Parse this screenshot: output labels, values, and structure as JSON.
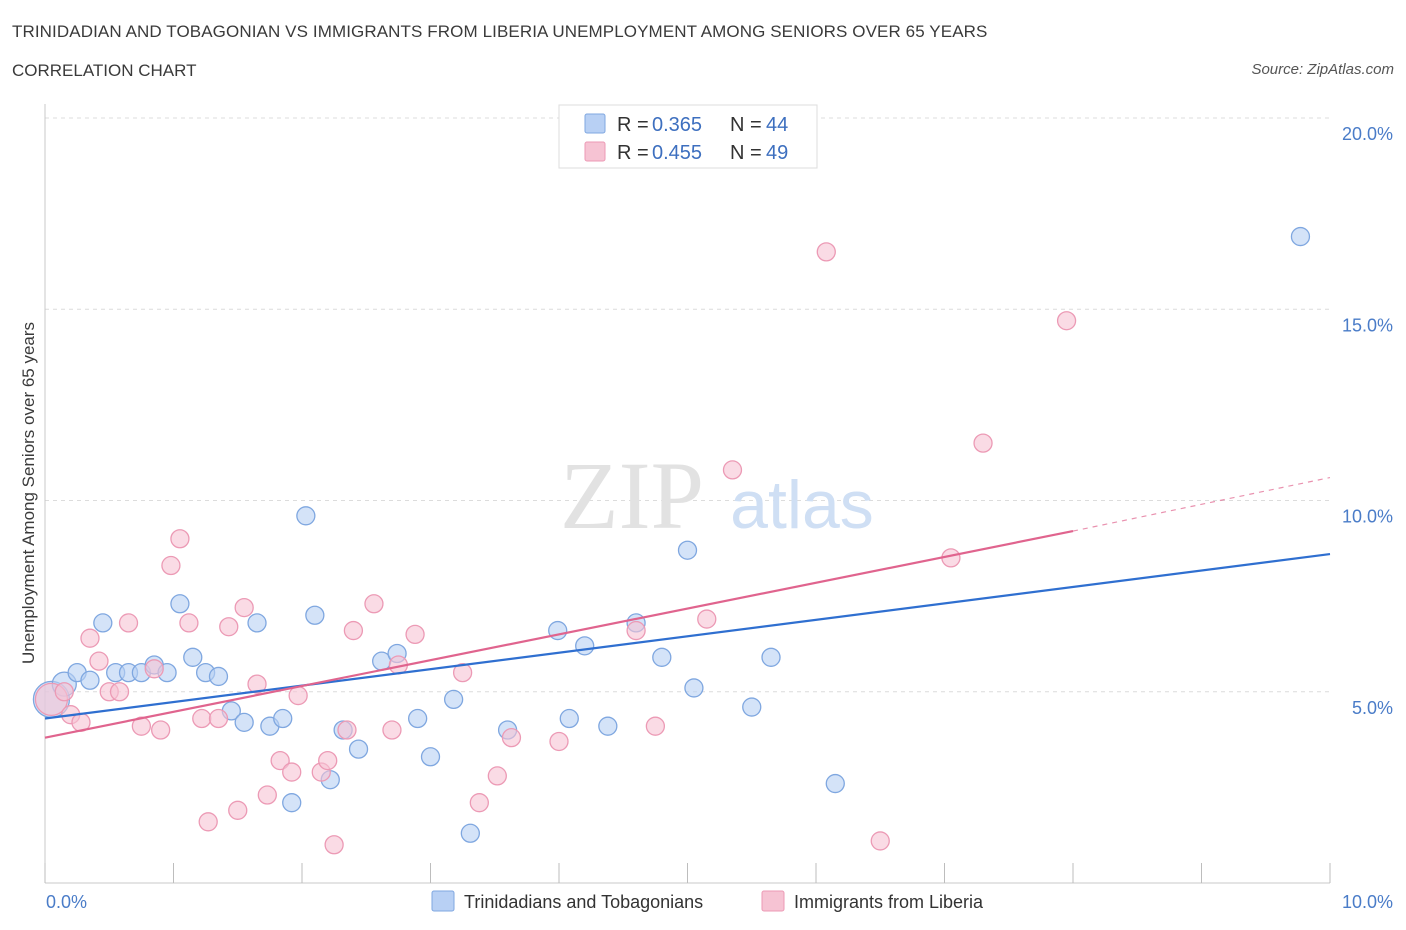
{
  "title": "TRINIDADIAN AND TOBAGONIAN VS IMMIGRANTS FROM LIBERIA UNEMPLOYMENT AMONG SENIORS OVER 65 YEARS",
  "subtitle": "CORRELATION CHART",
  "source": "Source: ZipAtlas.com",
  "watermark": {
    "zip": "ZIP",
    "atlas": "atlas"
  },
  "colors": {
    "blue_fill": "#b8d0f4",
    "blue_stroke": "#7fa7e0",
    "blue_line": "#2f6fd0",
    "pink_fill": "#f6c3d3",
    "pink_stroke": "#ec9ab5",
    "pink_line": "#e0648e",
    "grid": "#dcdcdc",
    "axis_text": "#4a7cc8"
  },
  "legend": {
    "r_label": "R =",
    "n_label": "N =",
    "series": [
      {
        "name": "Trinidadians and Tobagonians",
        "r": "0.365",
        "n": "44",
        "color": "blue"
      },
      {
        "name": "Immigrants from Liberia",
        "r": "0.455",
        "n": "49",
        "color": "pink"
      }
    ]
  },
  "chart_data": {
    "type": "scatter",
    "xlabel": "",
    "ylabel": "Unemployment Among Seniors over 65 years",
    "xlim": [
      0,
      10
    ],
    "ylim": [
      0,
      20
    ],
    "x_tick_labels": [
      "0.0%",
      "10.0%"
    ],
    "y_ticks": [
      5,
      10,
      15,
      20
    ],
    "y_tick_labels": [
      "5.0%",
      "10.0%",
      "15.0%",
      "20.0%"
    ],
    "grid": true,
    "series": [
      {
        "name": "Trinidadians and Tobagonians",
        "color": "blue",
        "trend": {
          "x": [
            0,
            10
          ],
          "y": [
            4.3,
            8.6
          ]
        },
        "points": [
          [
            0.05,
            4.8,
            18
          ],
          [
            0.15,
            5.2,
            12
          ],
          [
            0.25,
            5.5,
            9
          ],
          [
            0.35,
            5.3,
            9
          ],
          [
            0.45,
            6.8,
            9
          ],
          [
            0.55,
            5.5,
            9
          ],
          [
            0.65,
            5.5,
            9
          ],
          [
            0.75,
            5.5,
            9
          ],
          [
            0.85,
            5.7,
            9
          ],
          [
            0.95,
            5.5,
            9
          ],
          [
            1.05,
            7.3,
            9
          ],
          [
            1.15,
            5.9,
            9
          ],
          [
            1.25,
            5.5,
            9
          ],
          [
            1.35,
            5.4,
            9
          ],
          [
            1.45,
            4.5,
            9
          ],
          [
            1.55,
            4.2,
            9
          ],
          [
            1.65,
            6.8,
            9
          ],
          [
            1.75,
            4.1,
            9
          ],
          [
            1.85,
            4.3,
            9
          ],
          [
            1.92,
            2.1,
            9
          ],
          [
            2.03,
            9.6,
            9
          ],
          [
            2.1,
            7.0,
            9
          ],
          [
            2.22,
            2.7,
            9
          ],
          [
            2.32,
            4.0,
            9
          ],
          [
            2.44,
            3.5,
            9
          ],
          [
            2.62,
            5.8,
            9
          ],
          [
            2.74,
            6.0,
            9
          ],
          [
            2.9,
            4.3,
            9
          ],
          [
            3.0,
            3.3,
            9
          ],
          [
            3.18,
            4.8,
            9
          ],
          [
            3.31,
            1.3,
            9
          ],
          [
            3.6,
            4.0,
            9
          ],
          [
            3.99,
            6.6,
            9
          ],
          [
            4.08,
            4.3,
            9
          ],
          [
            4.2,
            6.2,
            9
          ],
          [
            4.38,
            4.1,
            9
          ],
          [
            4.6,
            6.8,
            9
          ],
          [
            4.8,
            5.9,
            9
          ],
          [
            5.0,
            8.7,
            9
          ],
          [
            5.05,
            5.1,
            9
          ],
          [
            5.5,
            4.6,
            9
          ],
          [
            5.65,
            5.9,
            9
          ],
          [
            6.15,
            2.6,
            9
          ],
          [
            9.77,
            16.9,
            9
          ]
        ]
      },
      {
        "name": "Immigrants from Liberia",
        "color": "pink",
        "trend": {
          "x": [
            0,
            8.0
          ],
          "y": [
            3.8,
            9.2
          ]
        },
        "trend_dashed": {
          "x": [
            8.0,
            10
          ],
          "y": [
            9.2,
            10.6
          ]
        },
        "points": [
          [
            0.05,
            4.8,
            16
          ],
          [
            0.15,
            5.0,
            9
          ],
          [
            0.2,
            4.4,
            9
          ],
          [
            0.28,
            4.2,
            9
          ],
          [
            0.35,
            6.4,
            9
          ],
          [
            0.42,
            5.8,
            9
          ],
          [
            0.5,
            5.0,
            9
          ],
          [
            0.58,
            5.0,
            9
          ],
          [
            0.65,
            6.8,
            9
          ],
          [
            0.75,
            4.1,
            9
          ],
          [
            0.85,
            5.6,
            9
          ],
          [
            0.9,
            4.0,
            9
          ],
          [
            0.98,
            8.3,
            9
          ],
          [
            1.05,
            9.0,
            9
          ],
          [
            1.12,
            6.8,
            9
          ],
          [
            1.22,
            4.3,
            9
          ],
          [
            1.27,
            1.6,
            9
          ],
          [
            1.35,
            4.3,
            9
          ],
          [
            1.43,
            6.7,
            9
          ],
          [
            1.5,
            1.9,
            9
          ],
          [
            1.55,
            7.2,
            9
          ],
          [
            1.65,
            5.2,
            9
          ],
          [
            1.73,
            2.3,
            9
          ],
          [
            1.83,
            3.2,
            9
          ],
          [
            1.92,
            2.9,
            9
          ],
          [
            1.97,
            4.9,
            9
          ],
          [
            2.15,
            2.9,
            9
          ],
          [
            2.2,
            3.2,
            9
          ],
          [
            2.25,
            1.0,
            9
          ],
          [
            2.35,
            4.0,
            9
          ],
          [
            2.4,
            6.6,
            9
          ],
          [
            2.56,
            7.3,
            9
          ],
          [
            2.7,
            4.0,
            9
          ],
          [
            2.75,
            5.7,
            9
          ],
          [
            2.88,
            6.5,
            9
          ],
          [
            3.25,
            5.5,
            9
          ],
          [
            3.38,
            2.1,
            9
          ],
          [
            3.52,
            2.8,
            9
          ],
          [
            3.63,
            3.8,
            9
          ],
          [
            4.0,
            3.7,
            9
          ],
          [
            4.6,
            6.6,
            9
          ],
          [
            4.75,
            4.1,
            9
          ],
          [
            5.15,
            6.9,
            9
          ],
          [
            5.35,
            10.8,
            9
          ],
          [
            6.08,
            16.5,
            9
          ],
          [
            6.5,
            1.1,
            9
          ],
          [
            7.05,
            8.5,
            9
          ],
          [
            7.3,
            11.5,
            9
          ],
          [
            7.95,
            14.7,
            9
          ]
        ]
      }
    ]
  }
}
